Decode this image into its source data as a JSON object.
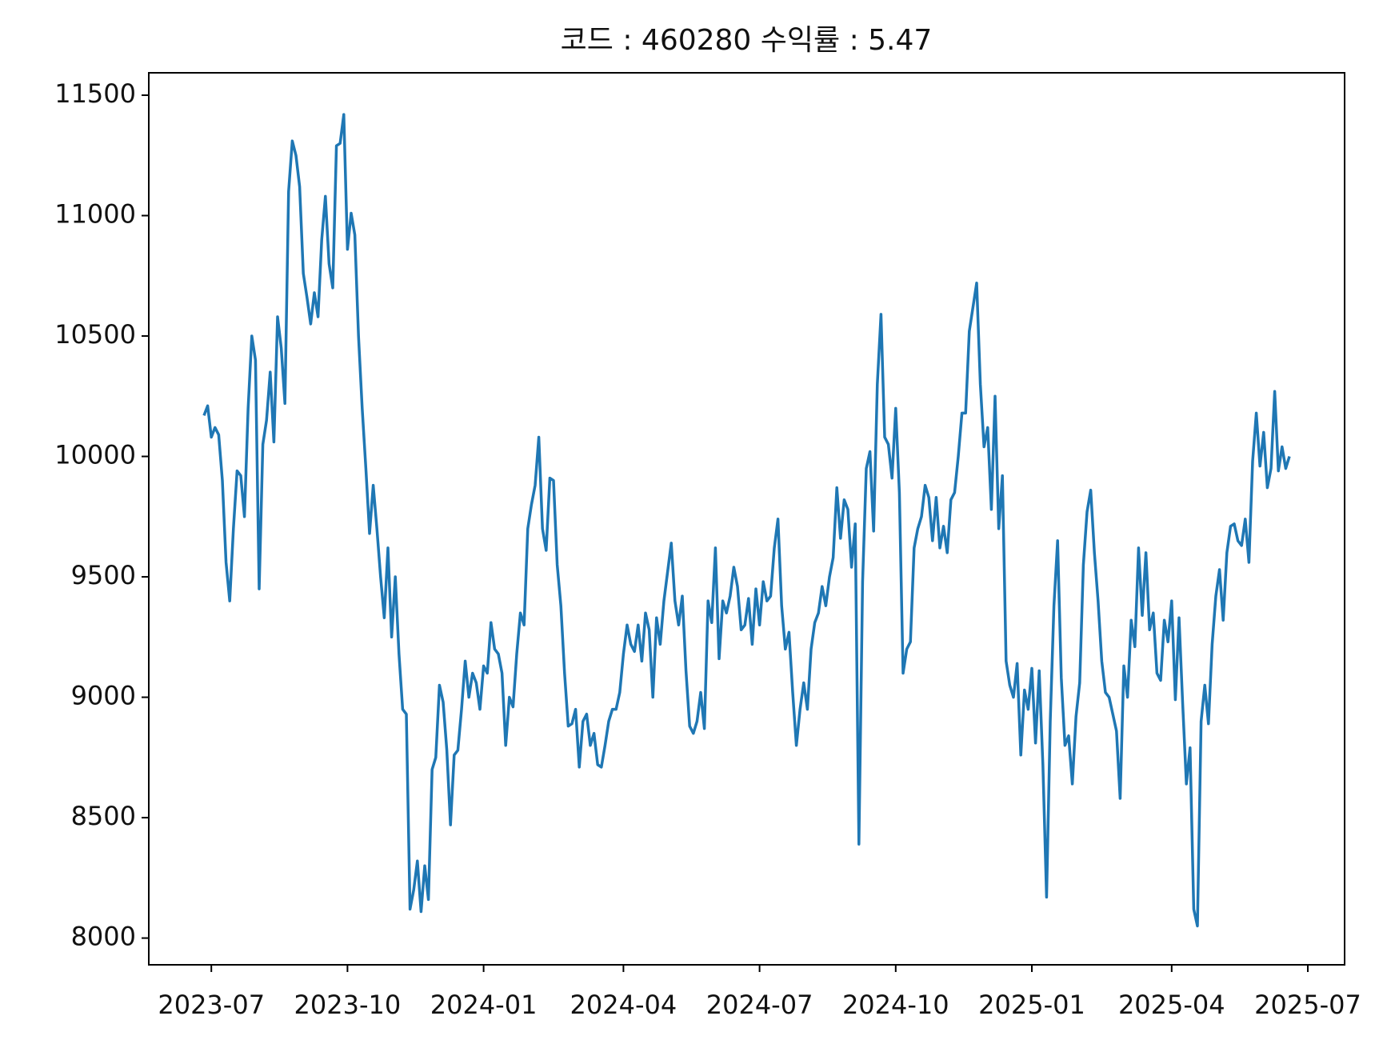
{
  "chart_data": {
    "type": "line",
    "title": "코드 : 460280 수익률 : 5.47",
    "series": [
      {
        "color": "#1f77b4",
        "values": [
          10170,
          10210,
          10080,
          10120,
          10090,
          9900,
          9560,
          9400,
          9700,
          9940,
          9920,
          9750,
          10200,
          10500,
          10400,
          9450,
          10050,
          10150,
          10350,
          10060,
          10580,
          10450,
          10220,
          11100,
          11310,
          11250,
          11120,
          10760,
          10660,
          10550,
          10680,
          10580,
          10900,
          11080,
          10800,
          10700,
          11290,
          11300,
          11420,
          10860,
          11010,
          10920,
          10500,
          10200,
          9950,
          9680,
          9880,
          9700,
          9500,
          9330,
          9620,
          9250,
          9500,
          9180,
          8950,
          8930,
          8120,
          8200,
          8320,
          8110,
          8300,
          8160,
          8700,
          8750,
          9050,
          8980,
          8780,
          8470,
          8760,
          8780,
          8950,
          9150,
          9000,
          9100,
          9060,
          8950,
          9130,
          9100,
          9310,
          9200,
          9180,
          9100,
          8800,
          9000,
          8960,
          9180,
          9350,
          9300,
          9700,
          9800,
          9880,
          10080,
          9700,
          9610,
          9910,
          9900,
          9550,
          9380,
          9100,
          8880,
          8890,
          8950,
          8710,
          8900,
          8930,
          8800,
          8850,
          8720,
          8710,
          8800,
          8900,
          8950,
          8950,
          9020,
          9180,
          9300,
          9220,
          9190,
          9300,
          9150,
          9350,
          9280,
          9000,
          9330,
          9220,
          9400,
          9520,
          9640,
          9400,
          9300,
          9420,
          9110,
          8880,
          8850,
          8900,
          9020,
          8870,
          9400,
          9310,
          9620,
          9160,
          9400,
          9350,
          9420,
          9540,
          9460,
          9280,
          9300,
          9410,
          9220,
          9450,
          9300,
          9480,
          9400,
          9420,
          9620,
          9740,
          9380,
          9200,
          9270,
          9020,
          8800,
          8950,
          9060,
          8950,
          9200,
          9310,
          9350,
          9460,
          9380,
          9500,
          9580,
          9870,
          9660,
          9820,
          9780,
          9540,
          9720,
          8390,
          9480,
          9950,
          10020,
          9690,
          10300,
          10590,
          10080,
          10050,
          9910,
          10200,
          9850,
          9100,
          9200,
          9230,
          9620,
          9700,
          9750,
          9880,
          9830,
          9650,
          9830,
          9620,
          9710,
          9600,
          9820,
          9850,
          10000,
          10180,
          10180,
          10520,
          10620,
          10720,
          10300,
          10040,
          10120,
          9780,
          10250,
          9700,
          9920,
          9150,
          9050,
          9000,
          9140,
          8760,
          9030,
          8950,
          9120,
          8810,
          9110,
          8720,
          8170,
          8900,
          9380,
          9650,
          9080,
          8800,
          8840,
          8640,
          8920,
          9060,
          9550,
          9770,
          9860,
          9600,
          9400,
          9150,
          9020,
          9000,
          8930,
          8860,
          8580,
          9130,
          9000,
          9320,
          9210,
          9620,
          9340,
          9600,
          9280,
          9350,
          9100,
          9070,
          9320,
          9230,
          9400,
          8990,
          9330,
          8970,
          8640,
          8790,
          8120,
          8050,
          8900,
          9050,
          8890,
          9220,
          9420,
          9530,
          9320,
          9600,
          9710,
          9720,
          9650,
          9630,
          9740,
          9560,
          9980,
          10180,
          9960,
          10100,
          9870,
          9950,
          10270,
          9940,
          10040,
          9950,
          10000
        ]
      }
    ],
    "xlim": [
      -15,
      310
    ],
    "xticks": [
      {
        "value": 2,
        "label": "2023-07"
      },
      {
        "value": 39,
        "label": "2023-10"
      },
      {
        "value": 76,
        "label": "2024-01"
      },
      {
        "value": 114,
        "label": "2024-04"
      },
      {
        "value": 151,
        "label": "2024-07"
      },
      {
        "value": 188,
        "label": "2024-10"
      },
      {
        "value": 225,
        "label": "2025-01"
      },
      {
        "value": 263,
        "label": "2025-04"
      },
      {
        "value": 300,
        "label": "2025-07"
      }
    ],
    "ylim": [
      7889,
      11593
    ],
    "yticks": [
      8000,
      8500,
      9000,
      9500,
      10000,
      10500,
      11000,
      11500
    ]
  }
}
